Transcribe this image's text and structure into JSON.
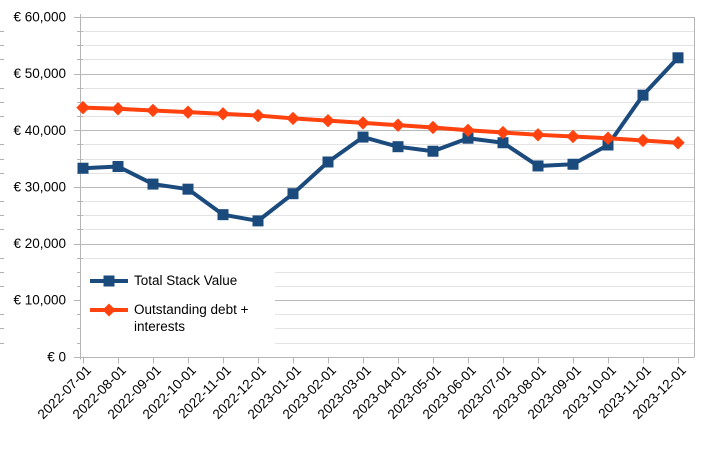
{
  "chart_data": {
    "type": "line",
    "title": "",
    "xlabel": "",
    "ylabel": "",
    "categories": [
      "2022-07-01",
      "2022-08-01",
      "2022-09-01",
      "2022-10-01",
      "2022-11-01",
      "2022-12-01",
      "2023-01-01",
      "2023-02-01",
      "2023-03-01",
      "2023-04-01",
      "2023-05-01",
      "2023-06-01",
      "2023-07-01",
      "2023-08-01",
      "2023-09-01",
      "2023-10-01",
      "2023-11-01",
      "2023-12-01"
    ],
    "series": [
      {
        "name": "Total Stack Value",
        "color": "#1B4A7D",
        "marker": "square",
        "values": [
          33300,
          33600,
          30500,
          29600,
          25100,
          24000,
          28800,
          34400,
          38800,
          37100,
          36300,
          38600,
          37800,
          33700,
          34000,
          37400,
          46200,
          52800
        ]
      },
      {
        "name": "Outstanding debt + interests",
        "color": "#FF420E",
        "marker": "diamond",
        "values": [
          44000,
          43800,
          43500,
          43200,
          42900,
          42600,
          42100,
          41700,
          41300,
          40900,
          40500,
          40000,
          39600,
          39200,
          38900,
          38600,
          38200,
          37800
        ]
      }
    ],
    "y_axis": {
      "min": 0,
      "max": 60000,
      "major_step": 10000,
      "minor_step": 2500,
      "tick_labels": [
        "€ 0",
        "€ 10,000",
        "€ 20,000",
        "€ 30,000",
        "€ 40,000",
        "€ 50,000",
        "€ 60,000"
      ]
    },
    "x_axis": {
      "tick_rotation_deg": 45
    },
    "grid": "major+minor horizontal",
    "legend_position": "inside bottom-left",
    "colors": {
      "major_gridline": "#b9b9b9",
      "minor_gridline": "#e3e3e3",
      "axis_line": "#b5b5b5",
      "background": "#ffffff",
      "text": "#000000"
    }
  }
}
